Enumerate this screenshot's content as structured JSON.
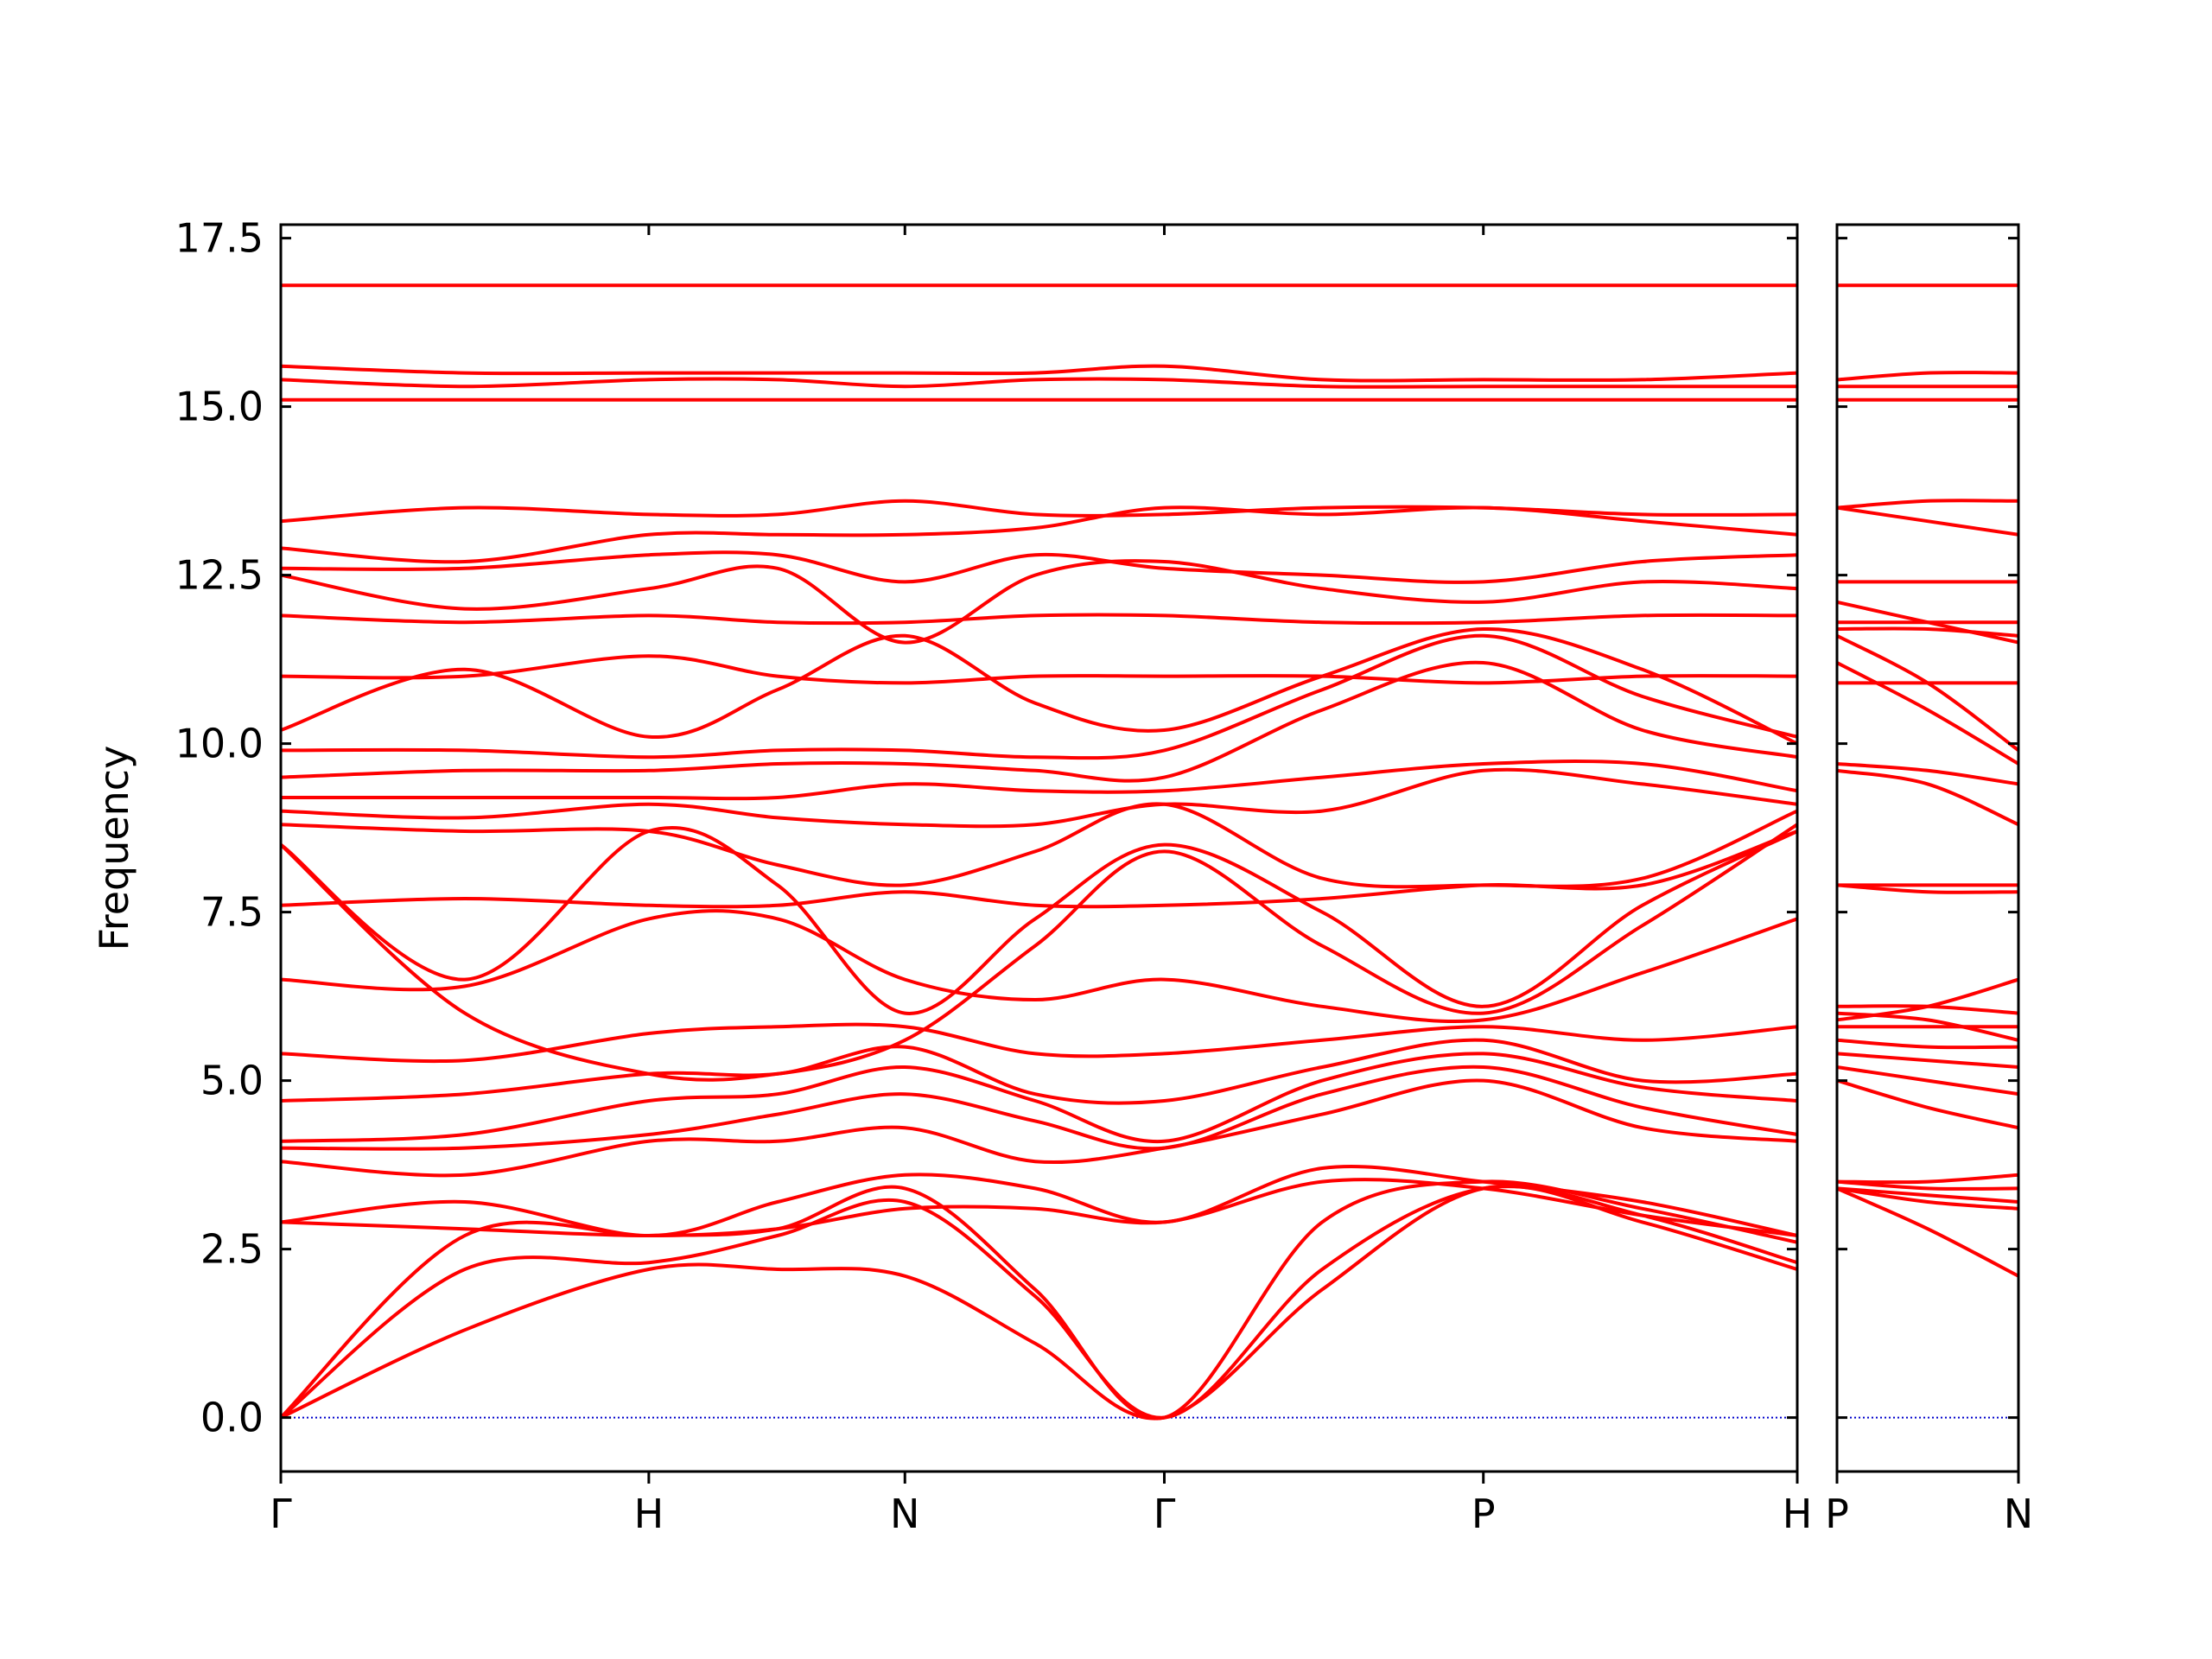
{
  "chart_data": [
    {
      "type": "line",
      "ylabel": "Frequency",
      "color": "#ff0000",
      "hline": {
        "value": 0,
        "color": "#0000cc"
      },
      "xlim": [
        0,
        4.121
      ],
      "ylim": [
        -0.8,
        17.7
      ],
      "xticks": [
        {
          "value": 0,
          "label": "Γ"
        },
        {
          "value": 1,
          "label": "H"
        },
        {
          "value": 1.696,
          "label": "N"
        },
        {
          "value": 2.401,
          "label": "Γ"
        },
        {
          "value": 3.268,
          "label": "P"
        },
        {
          "value": 4.121,
          "label": "H"
        }
      ],
      "yticks": [
        {
          "value": 0,
          "label": "0.0"
        },
        2.5,
        {
          "value": 5,
          "label": "5.0"
        },
        7.5,
        {
          "value": 10,
          "label": "10.0"
        },
        12.5,
        {
          "value": 15,
          "label": "15.0"
        },
        17.5
      ],
      "x": [
        0,
        0.5,
        1,
        1.35,
        1.696,
        2.05,
        2.401,
        2.83,
        3.268,
        3.7,
        4.121
      ],
      "series": [
        {
          "values": [
            0,
            1.3,
            2.2,
            2.2,
            2.1,
            1.1,
            0,
            1.9,
            3.4,
            2.9,
            2.2
          ]
        },
        {
          "values": [
            0,
            2.2,
            2.3,
            2.7,
            3.2,
            1.8,
            0,
            2.2,
            3.4,
            3.0,
            2.3
          ]
        },
        {
          "values": [
            0,
            2.7,
            2.7,
            2.8,
            3.4,
            1.9,
            0,
            2.9,
            3.5,
            3.1,
            2.6
          ]
        },
        {
          "values": [
            2.9,
            2.8,
            2.7,
            2.8,
            3.1,
            3.1,
            2.9,
            3.5,
            3.4,
            3.0,
            2.7
          ]
        },
        {
          "values": [
            2.9,
            3.2,
            2.7,
            3.2,
            3.6,
            3.4,
            2.9,
            3.7,
            3.5,
            3.2,
            2.7
          ]
        },
        {
          "values": [
            3.8,
            3.6,
            4.1,
            4.1,
            4.3,
            3.8,
            4.0,
            4.5,
            5.0,
            4.3,
            4.1
          ]
        },
        {
          "values": [
            4.0,
            4.0,
            4.2,
            4.5,
            4.8,
            4.4,
            4.0,
            4.8,
            5.2,
            4.6,
            4.2
          ]
        },
        {
          "values": [
            4.1,
            4.2,
            4.7,
            4.8,
            5.2,
            4.7,
            4.1,
            5.0,
            5.4,
            4.9,
            4.7
          ]
        },
        {
          "values": [
            4.7,
            4.8,
            5.1,
            5.1,
            5.5,
            4.8,
            4.7,
            5.2,
            5.6,
            5.0,
            5.1
          ]
        },
        {
          "values": [
            5.4,
            5.3,
            5.7,
            5.8,
            5.8,
            5.4,
            5.4,
            5.6,
            5.8,
            5.6,
            5.8
          ]
        },
        {
          "values": [
            6.5,
            6.4,
            7.4,
            7.4,
            6.5,
            6.2,
            6.5,
            6.1,
            5.9,
            6.6,
            7.4
          ]
        },
        {
          "values": [
            7.6,
            7.7,
            7.6,
            7.6,
            7.8,
            7.6,
            7.6,
            7.7,
            7.9,
            7.9,
            8.7
          ]
        },
        {
          "values": [
            8.5,
            6.0,
            5.1,
            5.1,
            5.6,
            7.0,
            8.4,
            7.0,
            6.0,
            7.3,
            8.8
          ]
        },
        {
          "values": [
            8.5,
            6.5,
            8.7,
            7.9,
            6.0,
            7.4,
            8.5,
            7.5,
            6.1,
            7.6,
            8.7
          ]
        },
        {
          "values": [
            8.8,
            8.7,
            8.7,
            8.2,
            7.9,
            8.4,
            9.1,
            8.0,
            7.9,
            8.0,
            9.0
          ]
        },
        {
          "values": [
            9.0,
            8.9,
            9.1,
            8.9,
            8.8,
            8.8,
            9.1,
            9.0,
            9.6,
            9.4,
            9.1
          ]
        },
        {
          "values": [
            9.2,
            9.2,
            9.2,
            9.2,
            9.4,
            9.3,
            9.3,
            9.5,
            9.7,
            9.7,
            9.3
          ]
        },
        {
          "values": [
            9.5,
            9.6,
            9.6,
            9.7,
            9.7,
            9.6,
            9.5,
            10.5,
            11.2,
            10.2,
            9.8
          ]
        },
        {
          "values": [
            9.9,
            9.9,
            9.8,
            9.9,
            9.9,
            9.8,
            9.9,
            10.8,
            11.6,
            10.7,
            10.1
          ]
        },
        {
          "values": [
            10.2,
            11.1,
            10.1,
            10.8,
            11.6,
            10.6,
            10.2,
            11.0,
            11.7,
            11.1,
            10.0
          ]
        },
        {
          "values": [
            11.0,
            11.0,
            11.3,
            11.0,
            10.9,
            11.0,
            11.0,
            11.0,
            10.9,
            11.0,
            11.0
          ]
        },
        {
          "values": [
            11.9,
            11.8,
            11.9,
            11.8,
            11.8,
            11.9,
            11.9,
            11.8,
            11.8,
            11.9,
            11.9
          ]
        },
        {
          "values": [
            12.5,
            12.0,
            12.3,
            12.6,
            11.5,
            12.5,
            12.7,
            12.3,
            12.1,
            12.4,
            12.3
          ]
        },
        {
          "values": [
            12.6,
            12.6,
            12.8,
            12.8,
            12.4,
            12.8,
            12.6,
            12.5,
            12.4,
            12.7,
            12.8
          ]
        },
        {
          "values": [
            12.9,
            12.7,
            13.1,
            13.1,
            13.1,
            13.2,
            13.5,
            13.4,
            13.5,
            13.3,
            13.1
          ]
        },
        {
          "values": [
            13.3,
            13.5,
            13.4,
            13.4,
            13.6,
            13.4,
            13.4,
            13.5,
            13.5,
            13.4,
            13.4
          ]
        },
        {
          "values": [
            15.1,
            15.1,
            15.1,
            15.1,
            15.1,
            15.1,
            15.1,
            15.1,
            15.1,
            15.1,
            15.1
          ]
        },
        {
          "values": [
            15.4,
            15.3,
            15.4,
            15.4,
            15.3,
            15.4,
            15.4,
            15.3,
            15.3,
            15.3,
            15.3
          ]
        },
        {
          "values": [
            15.6,
            15.5,
            15.5,
            15.5,
            15.5,
            15.5,
            15.6,
            15.4,
            15.4,
            15.4,
            15.5
          ]
        },
        {
          "values": [
            16.8,
            16.8,
            16.8,
            16.8,
            16.8,
            16.8,
            16.8,
            16.8,
            16.8,
            16.8,
            16.8
          ]
        }
      ]
    },
    {
      "type": "line",
      "color": "#ff0000",
      "hline": {
        "value": 0,
        "color": "#0000cc"
      },
      "xlim": [
        0,
        0.494
      ],
      "ylim": [
        -0.8,
        17.7
      ],
      "xticks": [
        {
          "value": 0,
          "label": "P"
        },
        {
          "value": 0.494,
          "label": "N"
        }
      ],
      "x": [
        0,
        0.247,
        0.494
      ],
      "series": [
        {
          "values": [
            3.4,
            2.8,
            2.1
          ]
        },
        {
          "values": [
            3.4,
            3.3,
            3.2
          ]
        },
        {
          "values": [
            3.5,
            3.4,
            3.4
          ]
        },
        {
          "values": [
            3.4,
            3.2,
            3.1
          ]
        },
        {
          "values": [
            3.5,
            3.5,
            3.6
          ]
        },
        {
          "values": [
            5.0,
            4.6,
            4.3
          ]
        },
        {
          "values": [
            5.2,
            5.0,
            4.8
          ]
        },
        {
          "values": [
            5.4,
            5.3,
            5.2
          ]
        },
        {
          "values": [
            5.6,
            5.5,
            5.5
          ]
        },
        {
          "values": [
            5.8,
            5.8,
            5.8
          ]
        },
        {
          "values": [
            5.9,
            6.1,
            6.5
          ]
        },
        {
          "values": [
            7.9,
            7.8,
            7.8
          ]
        },
        {
          "values": [
            6.0,
            5.9,
            5.6
          ]
        },
        {
          "values": [
            6.1,
            6.1,
            6.0
          ]
        },
        {
          "values": [
            7.9,
            7.9,
            7.9
          ]
        },
        {
          "values": [
            9.6,
            9.4,
            8.8
          ]
        },
        {
          "values": [
            9.7,
            9.6,
            9.4
          ]
        },
        {
          "values": [
            11.2,
            10.5,
            9.7
          ]
        },
        {
          "values": [
            11.6,
            10.9,
            9.9
          ]
        },
        {
          "values": [
            11.7,
            11.7,
            11.6
          ]
        },
        {
          "values": [
            10.9,
            10.9,
            10.9
          ]
        },
        {
          "values": [
            11.8,
            11.8,
            11.8
          ]
        },
        {
          "values": [
            12.1,
            11.8,
            11.5
          ]
        },
        {
          "values": [
            12.4,
            12.4,
            12.4
          ]
        },
        {
          "values": [
            13.5,
            13.3,
            13.1
          ]
        },
        {
          "values": [
            13.5,
            13.6,
            13.6
          ]
        },
        {
          "values": [
            15.1,
            15.1,
            15.1
          ]
        },
        {
          "values": [
            15.3,
            15.3,
            15.3
          ]
        },
        {
          "values": [
            15.4,
            15.5,
            15.5
          ]
        },
        {
          "values": [
            16.8,
            16.8,
            16.8
          ]
        }
      ]
    }
  ]
}
